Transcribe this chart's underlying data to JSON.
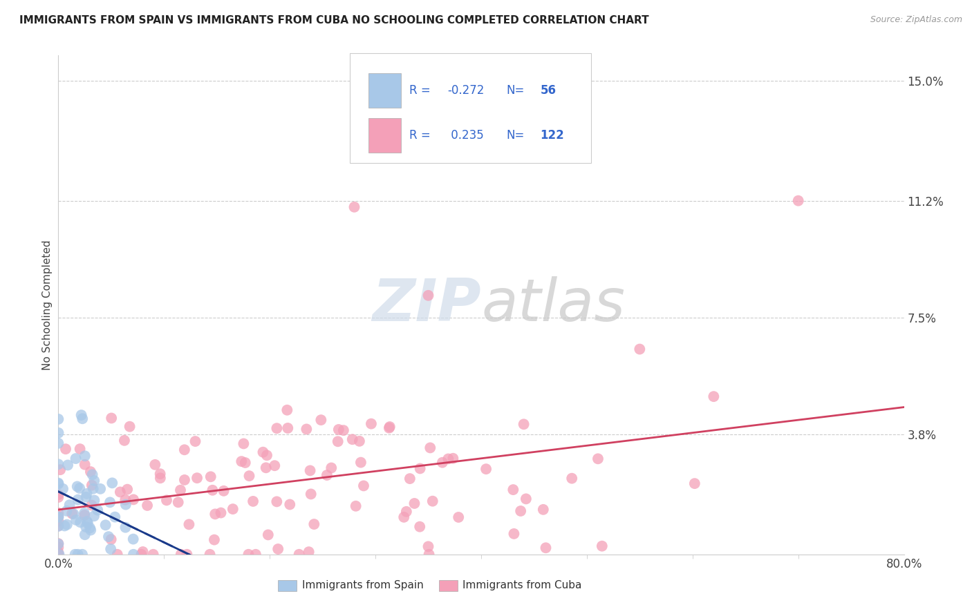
{
  "title": "IMMIGRANTS FROM SPAIN VS IMMIGRANTS FROM CUBA NO SCHOOLING COMPLETED CORRELATION CHART",
  "source": "Source: ZipAtlas.com",
  "ylabel": "No Schooling Completed",
  "xlim": [
    0,
    0.8
  ],
  "ylim": [
    0,
    0.158
  ],
  "xticks": [
    0.0,
    0.8
  ],
  "xticklabels": [
    "0.0%",
    "80.0%"
  ],
  "yticks": [
    0.038,
    0.075,
    0.112,
    0.15
  ],
  "yticklabels": [
    "3.8%",
    "7.5%",
    "11.2%",
    "15.0%"
  ],
  "spain_color": "#a8c8e8",
  "cuba_color": "#f4a0b8",
  "spain_trend_color": "#1a3a8a",
  "cuba_trend_color": "#d04060",
  "spain_R": -0.272,
  "spain_N": 56,
  "cuba_R": 0.235,
  "cuba_N": 122,
  "legend_label_spain": "Immigrants from Spain",
  "legend_label_cuba": "Immigrants from Cuba",
  "watermark_zip": "ZIP",
  "watermark_atlas": "atlas",
  "background_color": "#ffffff",
  "grid_color": "#cccccc",
  "legend_text_color": "#3366cc",
  "title_color": "#222222",
  "source_color": "#999999",
  "tick_color": "#3366cc",
  "axis_label_color": "#444444",
  "spine_color": "#cccccc"
}
